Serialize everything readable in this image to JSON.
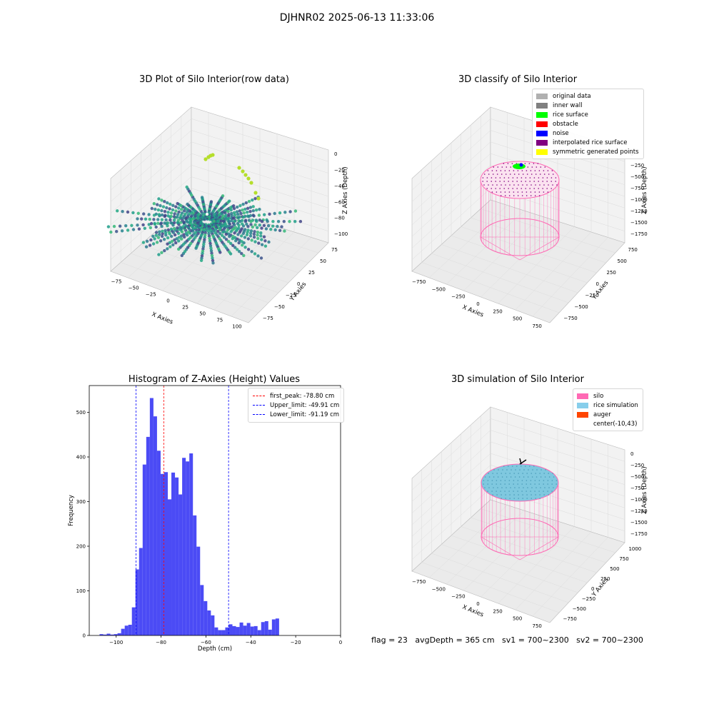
{
  "figure": {
    "suptitle": "DJHNR02 2025-06-13 11:33:06",
    "bottom_text": "flag = 23   avgDepth = 365 cm   sv1 = 700~2300   sv2 = 700~2300"
  },
  "panel1": {
    "title": "3D Plot of Silo Interior(row data)",
    "xlabel": "X Axies",
    "ylabel": "Y Axies",
    "zlabel": "Z Axies (Depth)",
    "xticks": [
      "−75",
      "−50",
      "−25",
      "0",
      "25",
      "50",
      "75",
      "100"
    ],
    "yticks": [
      "75",
      "50",
      "25",
      "0",
      "−25",
      "−50",
      "−75"
    ],
    "zticks": [
      "0",
      "−20",
      "−40",
      "−60",
      "−80",
      "−100"
    ]
  },
  "panel2": {
    "title": "3D classify of Silo Interior",
    "xlabel": "X Axies",
    "ylabel": "Y Axies",
    "zlabel": "Z Axies (Depth)",
    "xticks": [
      "−750",
      "−500",
      "−250",
      "0",
      "250",
      "500",
      "750"
    ],
    "yticks": [
      "750",
      "500",
      "250",
      "0",
      "−250",
      "−500",
      "−750"
    ],
    "zticks": [
      "0",
      "−250",
      "−500",
      "−750",
      "−1000",
      "−1250",
      "−1500",
      "−1750"
    ],
    "legend": [
      {
        "label": "original data",
        "color": "#b0b0b0"
      },
      {
        "label": "inner wall",
        "color": "#808080"
      },
      {
        "label": "rice surface",
        "color": "#00ff00"
      },
      {
        "label": "obstacle",
        "color": "#ff0000"
      },
      {
        "label": "noise",
        "color": "#0000ff"
      },
      {
        "label": "interpolated rice surface",
        "color": "#800080"
      },
      {
        "label": "symmetric generated points",
        "color": "#ffff00"
      }
    ]
  },
  "panel3": {
    "title": "Histogram of Z-Axies (Height) Values",
    "legend": [
      {
        "label": "first_peak: -78.80 cm",
        "color": "#ff0000"
      },
      {
        "label": "Upper_limit: -49.91 cm",
        "color": "#0000ff"
      },
      {
        "label": "Lower_limit: -91.19 cm",
        "color": "#0000ff"
      }
    ]
  },
  "panel4": {
    "title": "3D simulation of Silo Interior",
    "xlabel": "X Axies",
    "ylabel": "Y Axies",
    "zlabel": "Z Axies (Depth)",
    "xticks": [
      "−750",
      "−500",
      "−250",
      "0",
      "250",
      "500",
      "750"
    ],
    "yticks": [
      "1000",
      "750",
      "500",
      "250",
      "0",
      "−250",
      "−500",
      "−750"
    ],
    "zticks": [
      "0",
      "−250",
      "−500",
      "−750",
      "−1000",
      "−1250",
      "−1500",
      "−1750"
    ],
    "legend": [
      {
        "label": "silo",
        "color": "#ff69b4"
      },
      {
        "label": "rice simulation",
        "color": "#87ceeb"
      },
      {
        "label": "auger",
        "color": "#ff4500"
      },
      {
        "label": "center(-10,43)",
        "color": ""
      }
    ]
  },
  "chart_data": {
    "type": "bar",
    "title": "Histogram of Z-Axies (Height) Values",
    "xlabel": "Depth (cm)",
    "ylabel": "Frequency",
    "xlim": [
      -112,
      0
    ],
    "ylim": [
      0,
      560
    ],
    "xticks": [
      -100,
      -80,
      -60,
      -40,
      -20,
      0
    ],
    "yticks": [
      0,
      100,
      200,
      300,
      400,
      500
    ],
    "color": "#4b4bf5",
    "bins": [
      {
        "x0": -107.4,
        "x1": -105.8,
        "count": 3
      },
      {
        "x0": -105.8,
        "x1": -104.2,
        "count": 2
      },
      {
        "x0": -104.2,
        "x1": -102.6,
        "count": 4
      },
      {
        "x0": -102.6,
        "x1": -101.0,
        "count": 2
      },
      {
        "x0": -101.0,
        "x1": -99.4,
        "count": 3
      },
      {
        "x0": -99.4,
        "x1": -97.8,
        "count": 5
      },
      {
        "x0": -97.8,
        "x1": -96.2,
        "count": 15
      },
      {
        "x0": -96.2,
        "x1": -94.6,
        "count": 22
      },
      {
        "x0": -94.6,
        "x1": -93.0,
        "count": 24
      },
      {
        "x0": -93.0,
        "x1": -91.4,
        "count": 63
      },
      {
        "x0": -91.4,
        "x1": -89.8,
        "count": 148
      },
      {
        "x0": -89.8,
        "x1": -88.2,
        "count": 196
      },
      {
        "x0": -88.2,
        "x1": -86.6,
        "count": 383
      },
      {
        "x0": -86.6,
        "x1": -85.0,
        "count": 445
      },
      {
        "x0": -85.0,
        "x1": -83.4,
        "count": 532
      },
      {
        "x0": -83.4,
        "x1": -81.8,
        "count": 491
      },
      {
        "x0": -81.8,
        "x1": -80.2,
        "count": 414
      },
      {
        "x0": -80.2,
        "x1": -78.6,
        "count": 362
      },
      {
        "x0": -78.6,
        "x1": -77.0,
        "count": 366
      },
      {
        "x0": -77.0,
        "x1": -75.4,
        "count": 305
      },
      {
        "x0": -75.4,
        "x1": -73.8,
        "count": 365
      },
      {
        "x0": -73.8,
        "x1": -72.2,
        "count": 354
      },
      {
        "x0": -72.2,
        "x1": -70.6,
        "count": 316
      },
      {
        "x0": -70.6,
        "x1": -69.0,
        "count": 398
      },
      {
        "x0": -69.0,
        "x1": -67.4,
        "count": 390
      },
      {
        "x0": -67.4,
        "x1": -65.8,
        "count": 408
      },
      {
        "x0": -65.8,
        "x1": -64.2,
        "count": 269
      },
      {
        "x0": -64.2,
        "x1": -62.6,
        "count": 199
      },
      {
        "x0": -62.6,
        "x1": -61.0,
        "count": 113
      },
      {
        "x0": -61.0,
        "x1": -59.4,
        "count": 77
      },
      {
        "x0": -59.4,
        "x1": -57.8,
        "count": 56
      },
      {
        "x0": -57.8,
        "x1": -56.2,
        "count": 45
      },
      {
        "x0": -56.2,
        "x1": -54.6,
        "count": 18
      },
      {
        "x0": -54.6,
        "x1": -53.0,
        "count": 12
      },
      {
        "x0": -53.0,
        "x1": -51.4,
        "count": 12
      },
      {
        "x0": -51.4,
        "x1": -49.8,
        "count": 18
      },
      {
        "x0": -49.8,
        "x1": -48.2,
        "count": 25
      },
      {
        "x0": -48.2,
        "x1": -46.6,
        "count": 21
      },
      {
        "x0": -46.6,
        "x1": -45.0,
        "count": 19
      },
      {
        "x0": -45.0,
        "x1": -43.4,
        "count": 29
      },
      {
        "x0": -43.4,
        "x1": -41.8,
        "count": 22
      },
      {
        "x0": -41.8,
        "x1": -40.2,
        "count": 28
      },
      {
        "x0": -40.2,
        "x1": -38.6,
        "count": 20
      },
      {
        "x0": -38.6,
        "x1": -37.0,
        "count": 21
      },
      {
        "x0": -37.0,
        "x1": -35.4,
        "count": 12
      },
      {
        "x0": -35.4,
        "x1": -33.8,
        "count": 30
      },
      {
        "x0": -33.8,
        "x1": -32.2,
        "count": 32
      },
      {
        "x0": -32.2,
        "x1": -30.6,
        "count": 13
      },
      {
        "x0": -30.6,
        "x1": -29.0,
        "count": 36
      },
      {
        "x0": -29.0,
        "x1": -27.4,
        "count": 38
      }
    ],
    "vlines": [
      {
        "x": -78.8,
        "color": "#ff0000",
        "label": "first_peak: -78.80 cm"
      },
      {
        "x": -49.91,
        "color": "#0000ff",
        "label": "Upper_limit: -49.91 cm"
      },
      {
        "x": -91.19,
        "color": "#0000ff",
        "label": "Lower_limit: -91.19 cm"
      }
    ]
  }
}
